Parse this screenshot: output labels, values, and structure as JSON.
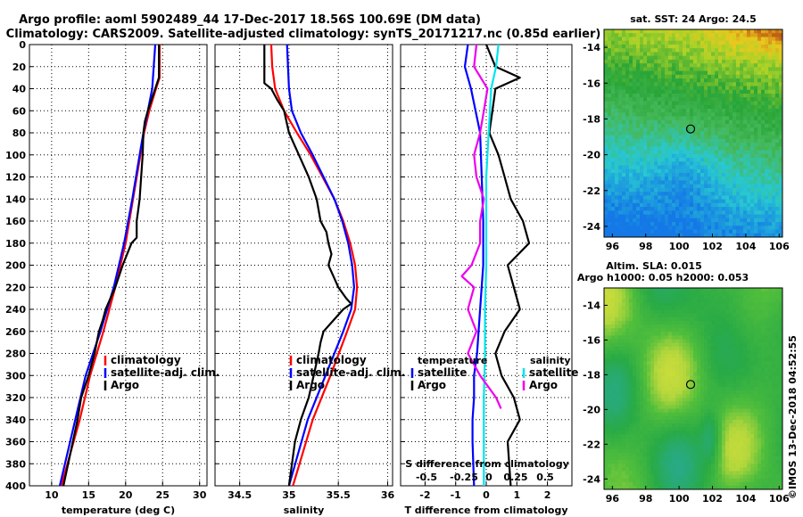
{
  "title": {
    "line1": "Argo profile: aoml 5902489_44 17-Dec-2017 18.56S 100.69E (DM data)",
    "line2": "Climatology: CARS2009. Satellite-adjusted climatology: synTS_20171217.nc (0.85d earlier)"
  },
  "colors": {
    "climatology": "#ff0000",
    "satellite": "#0000ff",
    "argo": "#000000",
    "sal_satellite": "#00e5ee",
    "sal_argo": "#ee00ee"
  },
  "chart_data": [
    {
      "type": "line",
      "id": "temperature",
      "xlabel": "temperature (deg C)",
      "ylabel": "",
      "xlim": [
        7,
        31
      ],
      "ylim": [
        400,
        0
      ],
      "x_ticks": [
        "10",
        "15",
        "20",
        "25",
        "30"
      ],
      "y_ticks": [
        "0",
        "20",
        "40",
        "60",
        "80",
        "100",
        "120",
        "140",
        "160",
        "180",
        "200",
        "220",
        "240",
        "260",
        "280",
        "300",
        "320",
        "340",
        "360",
        "380",
        "400"
      ],
      "legend": [
        {
          "label": "climatology",
          "color": "#ff0000"
        },
        {
          "label": "satellite-adj. clim.",
          "color": "#0000ff"
        },
        {
          "label": "Argo",
          "color": "#000000"
        }
      ],
      "series": [
        {
          "name": "climatology",
          "color": "#ff0000",
          "depth": [
            0,
            30,
            40,
            60,
            80,
            100,
            140,
            180,
            220,
            260,
            300,
            340,
            400
          ],
          "values": [
            24.6,
            24.6,
            24.1,
            23.2,
            22.5,
            22.0,
            21.0,
            20.0,
            18.6,
            17.0,
            15.2,
            13.8,
            11.3
          ]
        },
        {
          "name": "satellite-adj. clim.",
          "color": "#0000ff",
          "depth": [
            0,
            40,
            60,
            80,
            100,
            140,
            180,
            220,
            260,
            300,
            340,
            400
          ],
          "values": [
            24.0,
            23.6,
            23.0,
            22.4,
            21.9,
            20.9,
            19.8,
            18.4,
            16.6,
            14.6,
            13.2,
            11.1
          ]
        },
        {
          "name": "Argo",
          "color": "#000000",
          "depth": [
            0,
            30,
            40,
            60,
            70,
            80,
            100,
            120,
            140,
            150,
            160,
            175,
            180,
            200,
            220,
            240,
            250,
            260,
            280,
            300,
            320,
            340,
            400
          ],
          "values": [
            24.5,
            24.5,
            24.0,
            23.0,
            22.6,
            22.4,
            22.3,
            22.1,
            21.9,
            21.7,
            21.5,
            21.5,
            20.8,
            19.6,
            18.6,
            17.3,
            16.9,
            16.4,
            15.8,
            15.0,
            14.0,
            13.5,
            11.6
          ]
        }
      ]
    },
    {
      "type": "line",
      "id": "salinity",
      "xlabel": "salinity",
      "ylabel": "",
      "xlim": [
        34.25,
        36.05
      ],
      "ylim": [
        400,
        0
      ],
      "x_ticks": [
        "34.5",
        "35",
        "35.5",
        "36"
      ],
      "legend": [
        {
          "label": "climatology",
          "color": "#ff0000"
        },
        {
          "label": "satellite-adj. clim.",
          "color": "#0000ff"
        },
        {
          "label": "Argo",
          "color": "#000000"
        }
      ],
      "series": [
        {
          "name": "climatology",
          "color": "#ff0000",
          "depth": [
            0,
            20,
            40,
            60,
            80,
            100,
            120,
            140,
            160,
            180,
            200,
            220,
            240,
            260,
            300,
            340,
            400
          ],
          "values": [
            34.82,
            34.83,
            34.86,
            34.95,
            35.08,
            35.22,
            35.34,
            35.46,
            35.55,
            35.62,
            35.67,
            35.69,
            35.67,
            35.59,
            35.42,
            35.24,
            35.04
          ]
        },
        {
          "name": "satellite-adj. clim.",
          "color": "#0000ff",
          "depth": [
            0,
            20,
            40,
            60,
            80,
            100,
            120,
            140,
            160,
            180,
            200,
            220,
            240,
            260,
            300,
            340,
            400
          ],
          "values": [
            34.98,
            34.99,
            35.0,
            35.03,
            35.12,
            35.24,
            35.35,
            35.46,
            35.54,
            35.6,
            35.64,
            35.66,
            35.63,
            35.55,
            35.37,
            35.19,
            35.0
          ]
        },
        {
          "name": "Argo",
          "color": "#000000",
          "depth": [
            0,
            35,
            40,
            50,
            60,
            80,
            100,
            120,
            140,
            160,
            170,
            180,
            190,
            200,
            210,
            220,
            230,
            235,
            240,
            250,
            260,
            270,
            280,
            300,
            320,
            340,
            360,
            400
          ],
          "values": [
            34.75,
            34.75,
            34.82,
            34.88,
            34.95,
            35.0,
            35.1,
            35.2,
            35.28,
            35.32,
            35.38,
            35.4,
            35.43,
            35.4,
            35.45,
            35.5,
            35.58,
            35.63,
            35.55,
            35.45,
            35.35,
            35.32,
            35.3,
            35.25,
            35.2,
            35.12,
            35.06,
            35.0
          ]
        }
      ]
    },
    {
      "type": "line",
      "id": "differences",
      "xlabel": "T difference from climatology",
      "ylabel": "",
      "xlim": [
        -2.8,
        2.8
      ],
      "ylim": [
        400,
        0
      ],
      "x_ticks": [
        "-2",
        "-1",
        "0",
        "1",
        "2"
      ],
      "top_axis_label": "S difference from climatology",
      "top_axis_ticks": [
        "-0.5",
        "-0.25",
        "0",
        "0.25",
        "0.5"
      ],
      "legend_temperature_title": "temperature",
      "legend_salinity_title": "salinity",
      "legend": [
        {
          "label": "satellite",
          "color": "#0000ff",
          "group": "temperature"
        },
        {
          "label": "Argo",
          "color": "#000000",
          "group": "temperature"
        },
        {
          "label": "satellite",
          "color": "#00e5ee",
          "group": "salinity"
        },
        {
          "label": "Argo",
          "color": "#ee00ee",
          "group": "salinity"
        }
      ],
      "series": [
        {
          "name": "T satellite",
          "color": "#0000ff",
          "depth": [
            0,
            20,
            40,
            80,
            120,
            160,
            200,
            240,
            280,
            300,
            320,
            340,
            360,
            400
          ],
          "values": [
            -0.6,
            -0.7,
            -0.5,
            -0.2,
            -0.15,
            -0.1,
            -0.1,
            -0.2,
            -0.3,
            -0.4,
            -0.4,
            -0.45,
            -0.45,
            -0.4
          ]
        },
        {
          "name": "T Argo",
          "color": "#000000",
          "depth": [
            0,
            20,
            30,
            40,
            60,
            80,
            100,
            120,
            140,
            160,
            180,
            200,
            220,
            240,
            260,
            280,
            300,
            320,
            340,
            360,
            400
          ],
          "values": [
            0.0,
            0.3,
            1.1,
            0.3,
            0.2,
            0.1,
            0.4,
            0.6,
            0.8,
            1.2,
            1.4,
            0.7,
            0.9,
            1.1,
            0.6,
            0.3,
            0.5,
            0.9,
            1.1,
            0.7,
            0.8
          ]
        },
        {
          "name": "S satellite",
          "color": "#00e5ee",
          "depth": [
            0,
            20,
            40,
            80,
            120,
            160,
            200,
            240,
            280,
            320,
            360,
            400
          ],
          "values": [
            0.1,
            0.08,
            0.04,
            0.02,
            0.0,
            0.0,
            0.0,
            -0.01,
            -0.01,
            -0.02,
            -0.02,
            -0.02
          ]
        },
        {
          "name": "S Argo",
          "color": "#ee00ee",
          "depth": [
            0,
            20,
            40,
            60,
            80,
            100,
            120,
            140,
            160,
            180,
            200,
            210,
            220,
            240,
            260,
            280,
            300,
            320,
            330
          ],
          "values": [
            -0.08,
            -0.1,
            0.01,
            -0.02,
            -0.05,
            -0.1,
            -0.08,
            -0.02,
            -0.05,
            -0.05,
            -0.12,
            -0.2,
            -0.1,
            -0.15,
            -0.08,
            -0.15,
            -0.05,
            0.08,
            0.12
          ]
        }
      ]
    },
    {
      "type": "heatmap",
      "id": "sst_map",
      "title": "sat. SST: 24 Argo: 24.5",
      "xlim": [
        95.5,
        106.2
      ],
      "ylim": [
        -24.6,
        -13
      ],
      "x_ticks": [
        "96",
        "98",
        "100",
        "102",
        "104",
        "106"
      ],
      "y_ticks": [
        "-14",
        "-16",
        "-18",
        "-20",
        "-22",
        "-24"
      ],
      "marker": {
        "lon": 100.69,
        "lat": -18.56
      }
    },
    {
      "type": "heatmap",
      "id": "sla_map",
      "title_line1": "Altim. SLA: 0.015",
      "title_line2": "Argo h1000: 0.05 h2000: 0.053",
      "xlim": [
        95.5,
        106.2
      ],
      "ylim": [
        -24.6,
        -13
      ],
      "x_ticks": [
        "96",
        "98",
        "100",
        "102",
        "104",
        "106"
      ],
      "y_ticks": [
        "-14",
        "-16",
        "-18",
        "-20",
        "-22",
        "-24"
      ],
      "marker": {
        "lon": 100.69,
        "lat": -18.56
      }
    }
  ],
  "footer": {
    "credit": "©IMOS 13-Dec-2018 04:52:55"
  }
}
